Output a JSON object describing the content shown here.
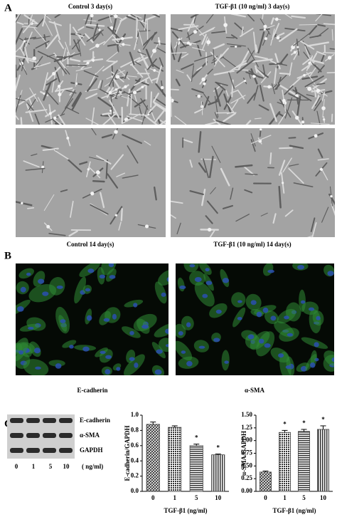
{
  "panels": {
    "A": {
      "label": "A",
      "captions": [
        "Control 3 day(s)",
        "TGF-β1 (10 ng/ml)  3 day(s)",
        "Control 14 day(s)",
        "TGF-β1 (10 ng/ml)  14 day(s)"
      ]
    },
    "B": {
      "label": "B",
      "captions": [
        "E-cadherin",
        "α-SMA"
      ]
    },
    "C": {
      "label": "C",
      "bands": [
        "E-cadherin",
        "α-SMA",
        "GAPDH"
      ],
      "lanes": [
        "0",
        "1",
        "5",
        "10"
      ],
      "unit": "( ng/ml)"
    }
  },
  "chart_data": [
    {
      "type": "bar",
      "y_label": "E-cadherin/GAPDH",
      "x_label": "TGF-β1 (ng/ml)",
      "categories": [
        "0",
        "1",
        "5",
        "10"
      ],
      "values": [
        0.88,
        0.84,
        0.6,
        0.48
      ],
      "errors": [
        0.03,
        0.02,
        0.02,
        0.01
      ],
      "annotations": [
        null,
        null,
        "*",
        "*"
      ],
      "color": "#444444",
      "ylim": [
        0,
        1
      ],
      "yticks": [
        {
          "value": 0,
          "label": "0.0"
        },
        0.2,
        0.4,
        0.6,
        0.8,
        {
          "value": 1,
          "label": "1.0"
        }
      ]
    },
    {
      "type": "bar",
      "y_label": "α-SMA/GAPDH",
      "x_label": "TGF-β1 (ng/ml)",
      "categories": [
        "0",
        "1",
        "5",
        "10"
      ],
      "values": [
        0.38,
        1.16,
        1.18,
        1.22
      ],
      "errors": [
        0.02,
        0.04,
        0.04,
        0.07
      ],
      "annotations": [
        null,
        "*",
        "*",
        "*"
      ],
      "color": "#444444",
      "ylim": [
        0,
        1.5
      ],
      "yticks": [
        {
          "value": 0,
          "label": "0.00"
        },
        0.25,
        {
          "value": 0.5,
          "label": "0.50"
        },
        0.75,
        {
          "value": 1,
          "label": "1.00"
        },
        1.25,
        {
          "value": 1.5,
          "label": "1.50"
        }
      ]
    }
  ]
}
